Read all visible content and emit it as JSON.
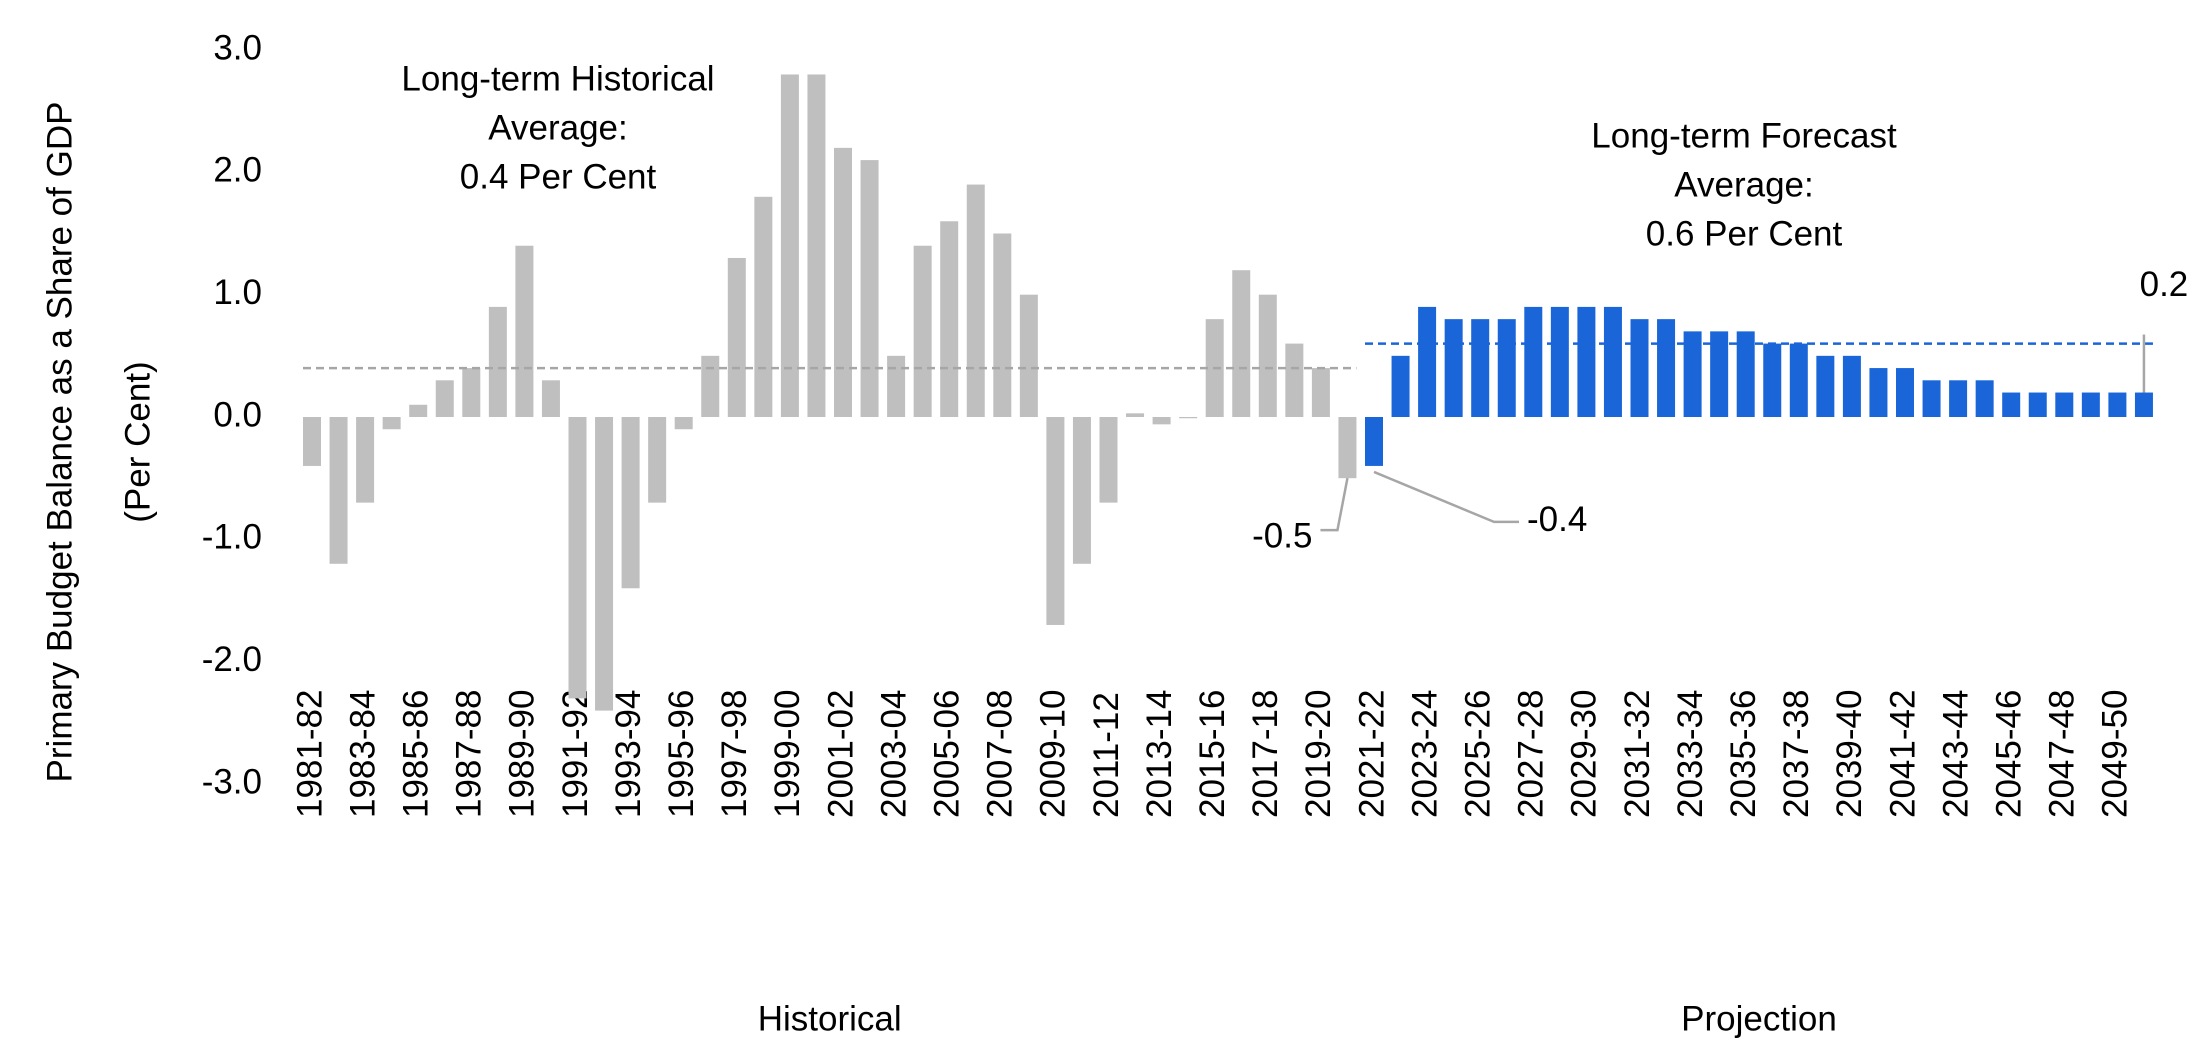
{
  "chart_data": {
    "type": "bar",
    "ylabel": [
      "Primary Budget Balance as a Share of GDP",
      "(Per Cent)"
    ],
    "categories": [
      "1981-82",
      null,
      "1983-84",
      null,
      "1985-86",
      null,
      "1987-88",
      null,
      "1989-90",
      null,
      "1991-92",
      null,
      "1993-94",
      null,
      "1995-96",
      null,
      "1997-98",
      null,
      "1999-00",
      null,
      "2001-02",
      null,
      "2003-04",
      null,
      "2005-06",
      null,
      "2007-08",
      null,
      "2009-10",
      null,
      "2011-12",
      null,
      "2013-14",
      null,
      "2015-16",
      null,
      "2017-18",
      null,
      "2019-20",
      null,
      "2021-22",
      null,
      "2023-24",
      null,
      "2025-26",
      null,
      "2027-28",
      null,
      "2029-30",
      null,
      "2031-32",
      null,
      "2033-34",
      null,
      "2035-36",
      null,
      "2037-38",
      null,
      "2039-40",
      null,
      "2041-42",
      null,
      "2043-44",
      null,
      "2045-46",
      null,
      "2047-48",
      null,
      "2049-50",
      null
    ],
    "series": [
      {
        "name": "Historical",
        "color": "#bfbfbf",
        "values": [
          -0.4,
          -1.2,
          -0.7,
          -0.1,
          0.1,
          0.3,
          0.4,
          0.9,
          1.4,
          0.3,
          -2.3,
          -2.4,
          -1.4,
          -0.7,
          -0.1,
          0.5,
          1.3,
          1.8,
          2.8,
          2.8,
          2.2,
          2.1,
          0.5,
          1.4,
          1.6,
          1.9,
          1.5,
          1.0,
          -1.7,
          -1.2,
          -0.7,
          0.03,
          -0.06,
          -0.01,
          0.8,
          1.2,
          1.0,
          0.6,
          0.4,
          -0.5,
          null,
          null,
          null,
          null,
          null,
          null,
          null,
          null,
          null,
          null,
          null,
          null,
          null,
          null,
          null,
          null,
          null,
          null,
          null,
          null,
          null,
          null,
          null,
          null,
          null,
          null,
          null,
          null,
          null,
          null
        ],
        "value_labels": [
          null,
          null,
          null,
          null,
          null,
          null,
          null,
          null,
          null,
          null,
          null,
          null,
          null,
          null,
          null,
          null,
          null,
          null,
          null,
          null,
          null,
          null,
          null,
          null,
          null,
          null,
          null,
          null,
          null,
          null,
          null,
          null,
          null,
          null,
          null,
          null,
          null,
          null,
          null,
          "-0.5",
          null,
          null,
          null,
          null,
          null,
          null,
          null,
          null,
          null,
          null,
          null,
          null,
          null,
          null,
          null,
          null,
          null,
          null,
          null,
          null,
          null,
          null,
          null,
          null,
          null,
          null,
          null,
          null,
          null,
          null
        ],
        "average": {
          "value": 0.4,
          "label": [
            "Long-term Historical",
            "Average:",
            "0.4 Per Cent"
          ],
          "color": "#a6a6a6"
        }
      },
      {
        "name": "Projection",
        "color": "#1a66d9",
        "values": [
          null,
          null,
          null,
          null,
          null,
          null,
          null,
          null,
          null,
          null,
          null,
          null,
          null,
          null,
          null,
          null,
          null,
          null,
          null,
          null,
          null,
          null,
          null,
          null,
          null,
          null,
          null,
          null,
          null,
          null,
          null,
          null,
          null,
          null,
          null,
          null,
          null,
          null,
          null,
          null,
          -0.4,
          0.5,
          0.9,
          0.8,
          0.8,
          0.8,
          0.9,
          0.9,
          0.9,
          0.9,
          0.8,
          0.8,
          0.7,
          0.7,
          0.7,
          0.6,
          0.6,
          0.5,
          0.5,
          0.4,
          0.4,
          0.3,
          0.3,
          0.3,
          0.2,
          0.2,
          0.2,
          0.2,
          0.2,
          0.2
        ],
        "value_labels": [
          null,
          null,
          null,
          null,
          null,
          null,
          null,
          null,
          null,
          null,
          null,
          null,
          null,
          null,
          null,
          null,
          null,
          null,
          null,
          null,
          null,
          null,
          null,
          null,
          null,
          null,
          null,
          null,
          null,
          null,
          null,
          null,
          null,
          null,
          null,
          null,
          null,
          null,
          null,
          null,
          "-0.4",
          null,
          null,
          null,
          null,
          null,
          null,
          null,
          null,
          null,
          null,
          null,
          null,
          null,
          null,
          null,
          null,
          null,
          null,
          null,
          null,
          null,
          null,
          null,
          null,
          null,
          null,
          null,
          null,
          "0.2"
        ],
        "average": {
          "value": 0.6,
          "label": [
            "Long-term Forecast",
            "Average:",
            "0.6 Per Cent"
          ],
          "color": "#1a66d9"
        }
      }
    ],
    "ylim": [
      -3,
      3
    ],
    "yticks": [
      {
        "value": -3,
        "label": "-3.0"
      },
      {
        "value": -2,
        "label": "-2.0"
      },
      {
        "value": -1,
        "label": "-1.0"
      },
      {
        "value": 0,
        "label": "0.0"
      },
      {
        "value": 1,
        "label": "1.0"
      },
      {
        "value": 2,
        "label": "2.0"
      },
      {
        "value": 3,
        "label": "3.0"
      }
    ],
    "grid": false
  }
}
